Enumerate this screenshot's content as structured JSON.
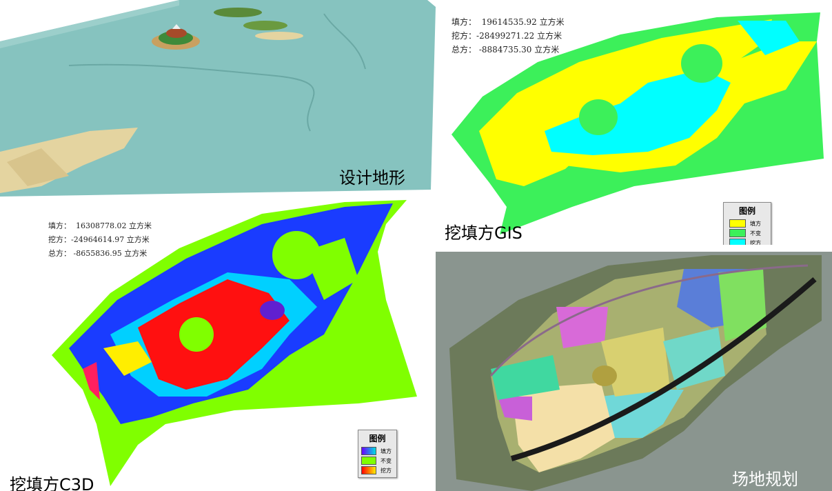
{
  "panels": {
    "design_terrain": {
      "caption": "设计地形",
      "colors": {
        "water": "#86c3bf",
        "land": "#e4d4a0"
      }
    },
    "cut_fill_gis": {
      "caption": "挖填方GIS",
      "stats": [
        {
          "label": "填方：",
          "value": "  19614535.92",
          "unit": "立方米"
        },
        {
          "label": "挖方：",
          "value": "-28499271.22",
          "unit": "立方米"
        },
        {
          "label": "总方：",
          "value": " -8884735.30",
          "unit": "立方米"
        }
      ],
      "legend": {
        "title": "图例",
        "items": [
          {
            "label": "填方",
            "color": "#ffff00"
          },
          {
            "label": "不变",
            "color": "#3cf05a"
          },
          {
            "label": "挖方",
            "color": "#00ffff"
          }
        ]
      }
    },
    "cut_fill_c3d": {
      "caption": "挖填方C3D",
      "stats": [
        {
          "label": "填方：",
          "value": "  16308778.02",
          "unit": "立方米"
        },
        {
          "label": "挖方：",
          "value": "-24964614.97",
          "unit": "立方米"
        },
        {
          "label": "总方：",
          "value": " -8655836.95",
          "unit": "立方米"
        }
      ],
      "legend": {
        "title": "图例",
        "items": [
          {
            "label": "填方",
            "gradient": [
              "#6a00ff",
              "#00e0e0"
            ]
          },
          {
            "label": "不变",
            "color": "#80ff00"
          },
          {
            "label": "挖方",
            "gradient": [
              "#ff0000",
              "#ffee00"
            ]
          }
        ]
      }
    },
    "site_planning": {
      "caption": "场地规划"
    }
  }
}
